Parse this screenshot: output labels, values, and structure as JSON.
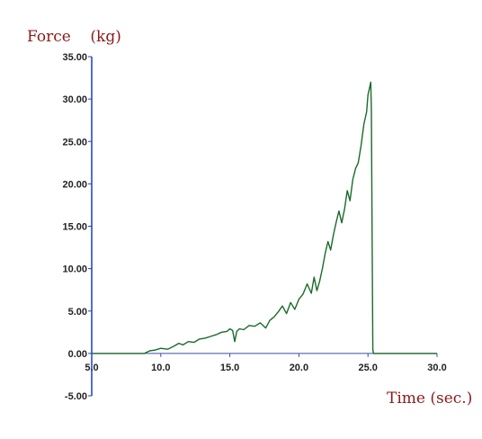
{
  "chart_data": {
    "type": "line",
    "ylabel": "Force    (kg)",
    "xlabel": "Time (sec.)",
    "xlim": [
      5,
      30
    ],
    "ylim": [
      -5,
      35
    ],
    "x_ticks": [
      "5.0",
      "10.0",
      "15.0",
      "20.0",
      "25.0",
      "30.0"
    ],
    "y_ticks": [
      "-5.00",
      "0.00",
      "5.00",
      "10.00",
      "15.00",
      "20.00",
      "25.00",
      "30.00",
      "35.00"
    ],
    "grid": false,
    "colors": {
      "line": "#1a6b2a",
      "y_axis": "#1f3fbf",
      "labels": "#8b1a1a"
    },
    "series": [
      {
        "x": [
          5.0,
          8.8,
          9.2,
          9.6,
          10.0,
          10.5,
          11.0,
          11.3,
          11.6,
          12.0,
          12.4,
          12.8,
          13.2,
          13.6,
          14.0,
          14.4,
          14.8,
          15.0,
          15.2,
          15.35,
          15.5,
          15.7,
          16.0,
          16.4,
          16.8,
          17.2,
          17.6,
          17.9,
          18.2,
          18.5,
          18.8,
          19.1,
          19.4,
          19.7,
          20.0,
          20.3,
          20.6,
          20.9,
          21.1,
          21.3,
          21.5,
          21.7,
          21.9,
          22.1,
          22.3,
          22.5,
          22.7,
          22.9,
          23.1,
          23.3,
          23.5,
          23.7,
          23.9,
          24.1,
          24.3,
          24.5,
          24.7,
          24.9,
          25.0,
          25.1,
          25.2,
          25.25,
          25.3,
          25.35,
          25.4,
          25.6,
          30.0
        ],
        "y": [
          0.0,
          0.0,
          0.3,
          0.4,
          0.6,
          0.5,
          0.9,
          1.2,
          1.0,
          1.4,
          1.3,
          1.7,
          1.8,
          2.0,
          2.2,
          2.5,
          2.6,
          2.9,
          2.7,
          1.4,
          2.6,
          2.9,
          2.8,
          3.3,
          3.2,
          3.6,
          3.0,
          3.9,
          4.3,
          4.9,
          5.6,
          4.7,
          6.0,
          5.2,
          6.4,
          7.0,
          8.2,
          7.1,
          9.0,
          7.4,
          8.5,
          10.0,
          11.8,
          13.2,
          12.2,
          14.0,
          15.5,
          16.8,
          15.4,
          17.0,
          19.2,
          18.0,
          20.5,
          21.8,
          22.5,
          24.5,
          27.0,
          28.5,
          30.5,
          31.2,
          32.0,
          28.6,
          14.0,
          0.5,
          0.0,
          0.0,
          0.0
        ]
      }
    ]
  }
}
